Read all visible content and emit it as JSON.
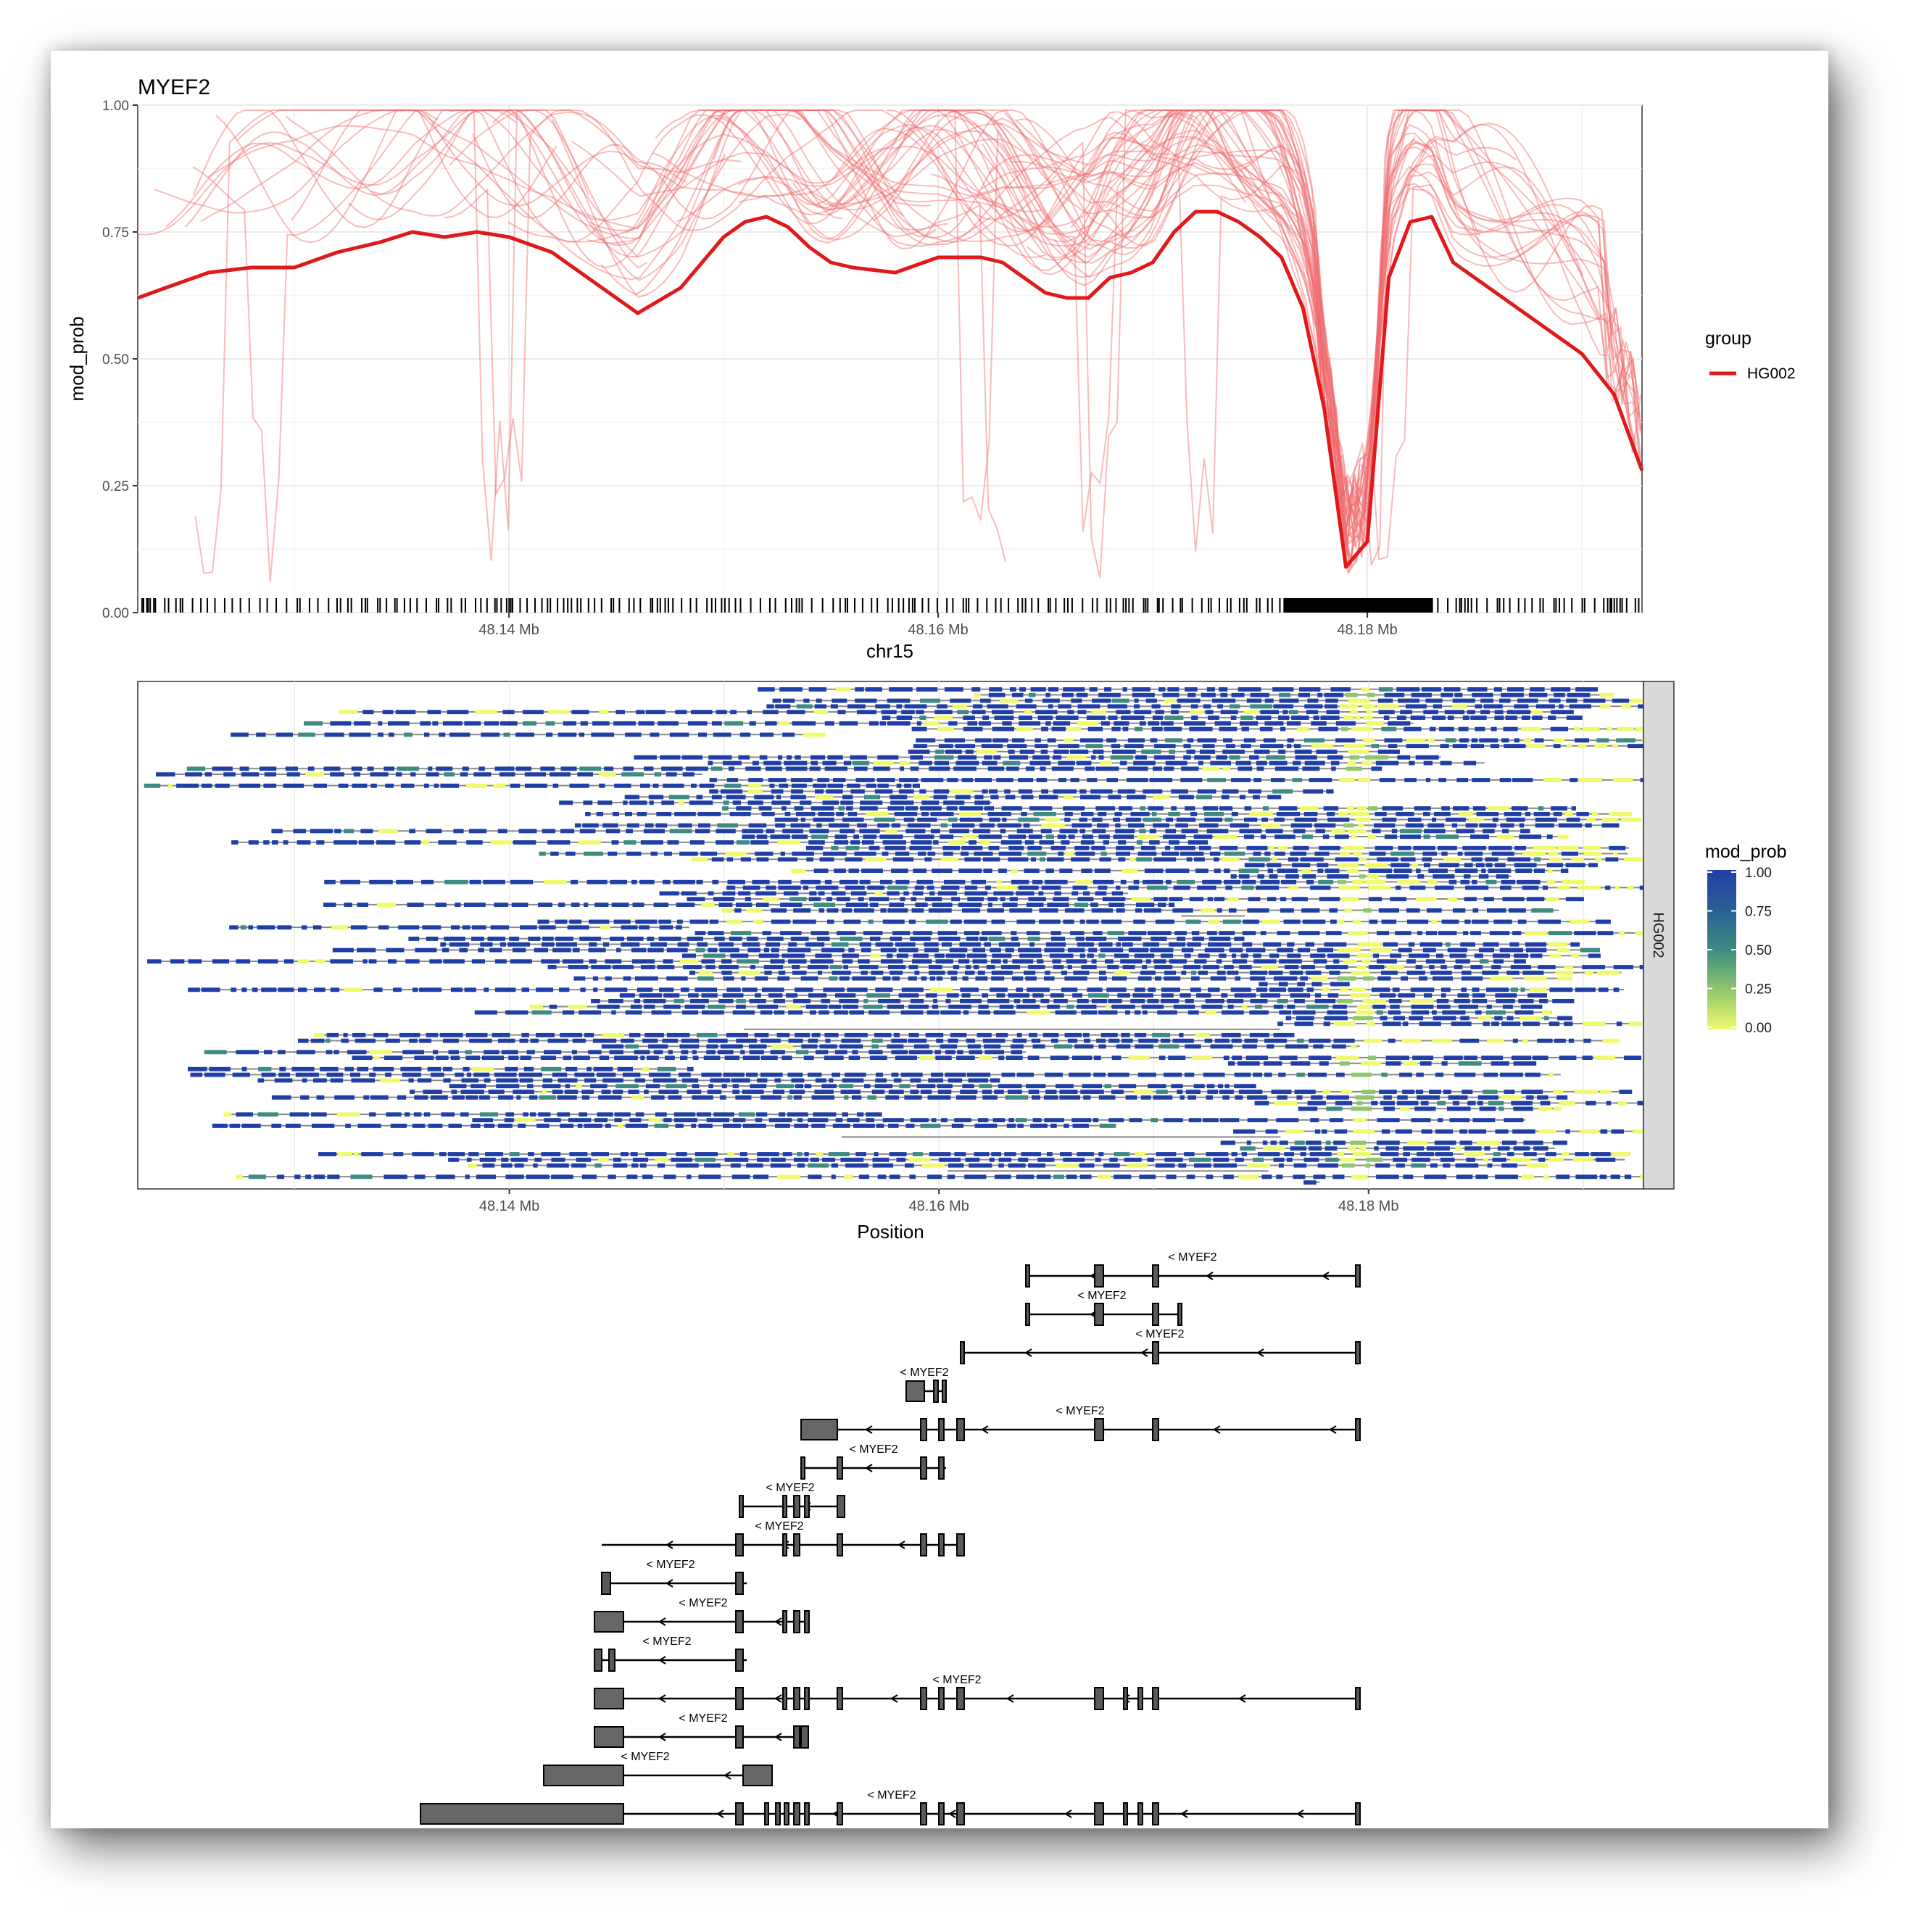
{
  "page": {
    "background": "#ffffff"
  },
  "chart_data": [
    {
      "type": "line",
      "title": "MYEF2",
      "xlabel": "chr15",
      "ylabel": "mod_prob",
      "xlim": [
        48.1227,
        48.1928
      ],
      "ylim": [
        0,
        1
      ],
      "x_ticks": [
        48.14,
        48.16,
        48.18
      ],
      "x_tick_labels": [
        "48.14 Mb",
        "48.16 Mb",
        "48.18 Mb"
      ],
      "y_ticks": [
        0,
        0.25,
        0.5,
        0.75,
        1.0
      ],
      "y_tick_labels": [
        "0.00",
        "0.25",
        "0.50",
        "0.75",
        "1.00"
      ],
      "grid": true,
      "legend": {
        "title": "group",
        "position": "right",
        "entries": [
          "HG002"
        ]
      },
      "colors": {
        "mean_line": "#e0191b",
        "read_lines": "#ef6a6c",
        "rug": "#000000",
        "grid": "#ebebeb"
      },
      "series": [
        {
          "name": "HG002",
          "x": [
            48.1227,
            48.124,
            48.126,
            48.128,
            48.13,
            48.132,
            48.134,
            48.1355,
            48.137,
            48.1385,
            48.14,
            48.142,
            48.144,
            48.146,
            48.148,
            48.15,
            48.151,
            48.152,
            48.153,
            48.154,
            48.155,
            48.156,
            48.158,
            48.16,
            48.161,
            48.162,
            48.163,
            48.164,
            48.165,
            48.166,
            48.167,
            48.168,
            48.169,
            48.17,
            48.171,
            48.172,
            48.173,
            48.174,
            48.175,
            48.176,
            48.177,
            48.178,
            48.179,
            48.18,
            48.181,
            48.182,
            48.183,
            48.184,
            48.186,
            48.188,
            48.19,
            48.1915,
            48.1928
          ],
          "y": [
            0.62,
            0.64,
            0.67,
            0.68,
            0.68,
            0.71,
            0.73,
            0.75,
            0.74,
            0.75,
            0.74,
            0.71,
            0.65,
            0.59,
            0.64,
            0.74,
            0.77,
            0.78,
            0.76,
            0.72,
            0.69,
            0.68,
            0.67,
            0.7,
            0.7,
            0.7,
            0.69,
            0.66,
            0.63,
            0.62,
            0.62,
            0.66,
            0.67,
            0.69,
            0.75,
            0.79,
            0.79,
            0.77,
            0.74,
            0.7,
            0.6,
            0.4,
            0.09,
            0.14,
            0.66,
            0.77,
            0.78,
            0.69,
            0.63,
            0.57,
            0.51,
            0.43,
            0.28
          ]
        }
      ],
      "rug_positions": "CpG sites along chr15 (dense tick rug at y=0)"
    },
    {
      "type": "heatmap",
      "xlabel": "Position",
      "x_tick_labels": [
        "48.14 Mb",
        "48.16 Mb",
        "48.18 Mb"
      ],
      "facet_label": "HG002",
      "colorbar": {
        "title": "mod_prob",
        "ticks": [
          "1.00",
          "0.75",
          "0.50",
          "0.25",
          "0.00"
        ],
        "colors": [
          "#1f3fa6",
          "#2a5f94",
          "#3d8b82",
          "#8ec76c",
          "#f0fa6e"
        ]
      },
      "low_probability_region_mb": [
        48.1785,
        48.18
      ],
      "rows": 88
    },
    {
      "type": "gene_track",
      "gene_label": "< MYEF2",
      "transcripts": 15
    }
  ]
}
